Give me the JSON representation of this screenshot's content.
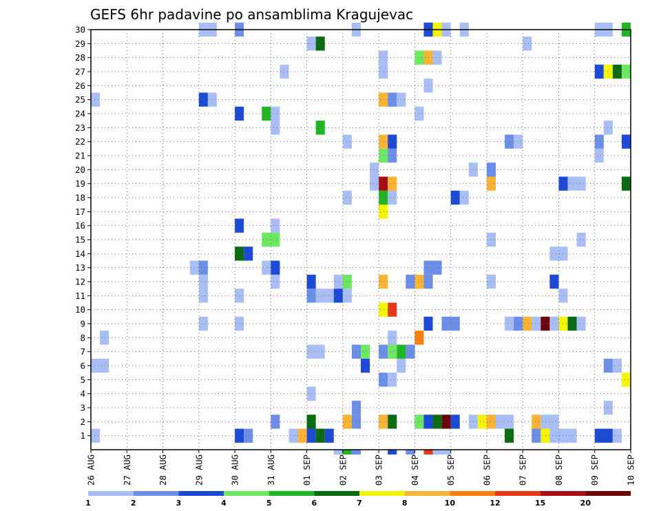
{
  "chart_data": {
    "type": "heatmap",
    "title": "GEFS 6hr padavine po ansamblima Kragujevac",
    "x_tick_labels": [
      "26 AUG",
      "27 AUG",
      "28 AUG",
      "29 AUG",
      "30 AUG",
      "31 AUG",
      "01 SEP",
      "02 SEP",
      "03 SEP",
      "04 SEP",
      "05 SEP",
      "06 SEP",
      "07 SEP",
      "08 SEP",
      "09 SEP",
      "10 SEP"
    ],
    "y_tick_labels": [
      "1",
      "2",
      "3",
      "4",
      "5",
      "6",
      "7",
      "8",
      "9",
      "10",
      "11",
      "12",
      "13",
      "14",
      "15",
      "16",
      "17",
      "18",
      "19",
      "20",
      "21",
      "22",
      "23",
      "24",
      "25",
      "26",
      "27",
      "28",
      "29",
      "30"
    ],
    "x_range_days": [
      0,
      15
    ],
    "y_range": [
      0,
      30
    ],
    "grid": true,
    "legend": {
      "placement": "bottom",
      "bins": [
        {
          "color": "#a8bef5"
        },
        {
          "color": "#6b8ee8"
        },
        {
          "color": "#1c4ad6"
        },
        {
          "color": "#6ee862"
        },
        {
          "color": "#1fb524"
        },
        {
          "color": "#0b6b12"
        },
        {
          "color": "#f5f500"
        },
        {
          "color": "#fab435"
        },
        {
          "color": "#f7800d"
        },
        {
          "color": "#e63a16"
        },
        {
          "color": "#a80f10"
        },
        {
          "color": "#6b0508"
        }
      ],
      "labels": [
        "1",
        "2",
        "3",
        "4",
        "5",
        "6",
        "7",
        "8",
        "10",
        "12",
        "15",
        "20"
      ]
    },
    "cells": [
      {
        "t": [
          0.0,
          0.25
        ],
        "m": 1,
        "c": 1
      },
      {
        "t": [
          4.0,
          4.25
        ],
        "m": 1,
        "c": 3
      },
      {
        "t": [
          4.25,
          4.5
        ],
        "m": 1,
        "c": 2
      },
      {
        "t": [
          5.5,
          5.75
        ],
        "m": 1,
        "c": 1
      },
      {
        "t": [
          5.75,
          6.0
        ],
        "m": 1,
        "c": 8
      },
      {
        "t": [
          6.0,
          6.25
        ],
        "m": 1,
        "c": 3
      },
      {
        "t": [
          6.25,
          6.5
        ],
        "m": 1,
        "c": 6
      },
      {
        "t": [
          6.5,
          6.75
        ],
        "m": 1,
        "c": 3
      },
      {
        "t": [
          11.5,
          11.75
        ],
        "m": 1,
        "c": 6
      },
      {
        "t": [
          12.25,
          12.5
        ],
        "m": 1,
        "c": 2
      },
      {
        "t": [
          12.5,
          12.75
        ],
        "m": 1,
        "c": 7
      },
      {
        "t": [
          12.75,
          13.5
        ],
        "m": 1,
        "c": 1
      },
      {
        "t": [
          14.0,
          14.5
        ],
        "m": 1,
        "c": 3
      },
      {
        "t": [
          14.5,
          14.75
        ],
        "m": 1,
        "c": 1
      },
      {
        "t": [
          5.0,
          5.25
        ],
        "m": 2,
        "c": 2
      },
      {
        "t": [
          6.0,
          6.25
        ],
        "m": 2,
        "c": 6
      },
      {
        "t": [
          7.0,
          7.25
        ],
        "m": 2,
        "c": 8
      },
      {
        "t": [
          7.25,
          7.5
        ],
        "m": 2,
        "c": 2
      },
      {
        "t": [
          8.0,
          8.25
        ],
        "m": 2,
        "c": 8
      },
      {
        "t": [
          8.25,
          8.5
        ],
        "m": 2,
        "c": 6
      },
      {
        "t": [
          9.0,
          9.25
        ],
        "m": 2,
        "c": 4
      },
      {
        "t": [
          9.25,
          9.5
        ],
        "m": 2,
        "c": 3
      },
      {
        "t": [
          9.5,
          9.75
        ],
        "m": 2,
        "c": 6
      },
      {
        "t": [
          9.75,
          10.0
        ],
        "m": 2,
        "c": 12
      },
      {
        "t": [
          10.0,
          10.25
        ],
        "m": 2,
        "c": 3
      },
      {
        "t": [
          10.5,
          10.75
        ],
        "m": 2,
        "c": 1
      },
      {
        "t": [
          10.75,
          11.0
        ],
        "m": 2,
        "c": 7
      },
      {
        "t": [
          11.0,
          11.25
        ],
        "m": 2,
        "c": 8
      },
      {
        "t": [
          11.25,
          11.75
        ],
        "m": 2,
        "c": 1
      },
      {
        "t": [
          12.25,
          12.5
        ],
        "m": 2,
        "c": 8
      },
      {
        "t": [
          12.5,
          13.0
        ],
        "m": 2,
        "c": 1
      },
      {
        "t": [
          7.25,
          7.5
        ],
        "m": 3,
        "c": 2
      },
      {
        "t": [
          14.25,
          14.5
        ],
        "m": 3,
        "c": 1
      },
      {
        "t": [
          6.0,
          6.25
        ],
        "m": 4,
        "c": 1
      },
      {
        "t": [
          8.0,
          8.25
        ],
        "m": 5,
        "c": 2
      },
      {
        "t": [
          8.25,
          8.5
        ],
        "m": 5,
        "c": 1
      },
      {
        "t": [
          14.75,
          15.0
        ],
        "m": 5,
        "c": 7
      },
      {
        "t": [
          0.0,
          0.5
        ],
        "m": 6,
        "c": 1
      },
      {
        "t": [
          7.5,
          7.75
        ],
        "m": 6,
        "c": 3
      },
      {
        "t": [
          8.5,
          8.75
        ],
        "m": 6,
        "c": 1
      },
      {
        "t": [
          14.25,
          14.5
        ],
        "m": 6,
        "c": 2
      },
      {
        "t": [
          14.5,
          14.75
        ],
        "m": 6,
        "c": 1
      },
      {
        "t": [
          6.0,
          6.5
        ],
        "m": 7,
        "c": 1
      },
      {
        "t": [
          7.25,
          7.5
        ],
        "m": 7,
        "c": 2
      },
      {
        "t": [
          7.5,
          7.75
        ],
        "m": 7,
        "c": 4
      },
      {
        "t": [
          8.0,
          8.25
        ],
        "m": 7,
        "c": 2
      },
      {
        "t": [
          8.25,
          8.5
        ],
        "m": 7,
        "c": 4
      },
      {
        "t": [
          8.5,
          8.75
        ],
        "m": 7,
        "c": 5
      },
      {
        "t": [
          8.75,
          9.0
        ],
        "m": 7,
        "c": 2
      },
      {
        "t": [
          0.25,
          0.5
        ],
        "m": 8,
        "c": 1
      },
      {
        "t": [
          8.25,
          8.5
        ],
        "m": 8,
        "c": 1
      },
      {
        "t": [
          9.0,
          9.25
        ],
        "m": 8,
        "c": 9
      },
      {
        "t": [
          3.0,
          3.25
        ],
        "m": 9,
        "c": 1
      },
      {
        "t": [
          4.0,
          4.25
        ],
        "m": 9,
        "c": 1
      },
      {
        "t": [
          9.25,
          9.5
        ],
        "m": 9,
        "c": 3
      },
      {
        "t": [
          9.75,
          10.25
        ],
        "m": 9,
        "c": 2
      },
      {
        "t": [
          11.5,
          11.75
        ],
        "m": 9,
        "c": 1
      },
      {
        "t": [
          11.75,
          12.0
        ],
        "m": 9,
        "c": 2
      },
      {
        "t": [
          12.0,
          12.25
        ],
        "m": 9,
        "c": 8
      },
      {
        "t": [
          12.25,
          12.5
        ],
        "m": 9,
        "c": 1
      },
      {
        "t": [
          12.5,
          12.75
        ],
        "m": 9,
        "c": 12
      },
      {
        "t": [
          12.75,
          13.0
        ],
        "m": 9,
        "c": 1
      },
      {
        "t": [
          13.0,
          13.25
        ],
        "m": 9,
        "c": 7
      },
      {
        "t": [
          13.25,
          13.5
        ],
        "m": 9,
        "c": 6
      },
      {
        "t": [
          13.5,
          13.75
        ],
        "m": 9,
        "c": 1
      },
      {
        "t": [
          8.0,
          8.25
        ],
        "m": 10,
        "c": 7
      },
      {
        "t": [
          8.25,
          8.5
        ],
        "m": 10,
        "c": 10
      },
      {
        "t": [
          3.0,
          3.25
        ],
        "m": 11,
        "c": 1
      },
      {
        "t": [
          4.0,
          4.25
        ],
        "m": 11,
        "c": 1
      },
      {
        "t": [
          6.0,
          6.25
        ],
        "m": 11,
        "c": 2
      },
      {
        "t": [
          6.25,
          6.75
        ],
        "m": 11,
        "c": 1
      },
      {
        "t": [
          6.75,
          7.0
        ],
        "m": 11,
        "c": 3
      },
      {
        "t": [
          7.0,
          7.25
        ],
        "m": 11,
        "c": 1
      },
      {
        "t": [
          13.0,
          13.25
        ],
        "m": 11,
        "c": 1
      },
      {
        "t": [
          3.0,
          3.25
        ],
        "m": 12,
        "c": 1
      },
      {
        "t": [
          5.0,
          5.25
        ],
        "m": 12,
        "c": 1
      },
      {
        "t": [
          6.0,
          6.25
        ],
        "m": 12,
        "c": 3
      },
      {
        "t": [
          6.75,
          7.0
        ],
        "m": 12,
        "c": 1
      },
      {
        "t": [
          7.0,
          7.25
        ],
        "m": 12,
        "c": 4
      },
      {
        "t": [
          8.0,
          8.25
        ],
        "m": 12,
        "c": 8
      },
      {
        "t": [
          8.75,
          9.0
        ],
        "m": 12,
        "c": 2
      },
      {
        "t": [
          9.0,
          9.25
        ],
        "m": 12,
        "c": 8
      },
      {
        "t": [
          9.25,
          9.5
        ],
        "m": 12,
        "c": 2
      },
      {
        "t": [
          11.0,
          11.25
        ],
        "m": 12,
        "c": 1
      },
      {
        "t": [
          12.75,
          13.0
        ],
        "m": 12,
        "c": 3
      },
      {
        "t": [
          2.75,
          3.0
        ],
        "m": 13,
        "c": 1
      },
      {
        "t": [
          3.0,
          3.25
        ],
        "m": 13,
        "c": 2
      },
      {
        "t": [
          4.75,
          5.0
        ],
        "m": 13,
        "c": 1
      },
      {
        "t": [
          5.0,
          5.25
        ],
        "m": 13,
        "c": 3
      },
      {
        "t": [
          9.25,
          9.75
        ],
        "m": 13,
        "c": 2
      },
      {
        "t": [
          4.0,
          4.25
        ],
        "m": 14,
        "c": 6
      },
      {
        "t": [
          4.25,
          4.5
        ],
        "m": 14,
        "c": 3
      },
      {
        "t": [
          12.75,
          13.25
        ],
        "m": 14,
        "c": 1
      },
      {
        "t": [
          4.75,
          5.25
        ],
        "m": 15,
        "c": 4
      },
      {
        "t": [
          11.0,
          11.25
        ],
        "m": 15,
        "c": 1
      },
      {
        "t": [
          13.5,
          13.75
        ],
        "m": 15,
        "c": 1
      },
      {
        "t": [
          4.0,
          4.25
        ],
        "m": 16,
        "c": 3
      },
      {
        "t": [
          5.0,
          5.25
        ],
        "m": 16,
        "c": 1
      },
      {
        "t": [
          8.0,
          8.25
        ],
        "m": 17,
        "c": 7
      },
      {
        "t": [
          7.0,
          7.25
        ],
        "m": 18,
        "c": 1
      },
      {
        "t": [
          8.0,
          8.25
        ],
        "m": 18,
        "c": 5
      },
      {
        "t": [
          8.25,
          8.5
        ],
        "m": 18,
        "c": 1
      },
      {
        "t": [
          10.0,
          10.25
        ],
        "m": 18,
        "c": 3
      },
      {
        "t": [
          10.25,
          10.5
        ],
        "m": 18,
        "c": 1
      },
      {
        "t": [
          7.75,
          8.0
        ],
        "m": 19,
        "c": 1
      },
      {
        "t": [
          8.0,
          8.25
        ],
        "m": 19,
        "c": 11
      },
      {
        "t": [
          8.25,
          8.5
        ],
        "m": 19,
        "c": 8
      },
      {
        "t": [
          11.0,
          11.25
        ],
        "m": 19,
        "c": 8
      },
      {
        "t": [
          13.0,
          13.25
        ],
        "m": 19,
        "c": 3
      },
      {
        "t": [
          13.25,
          13.75
        ],
        "m": 19,
        "c": 1
      },
      {
        "t": [
          14.75,
          15.0
        ],
        "m": 19,
        "c": 6
      },
      {
        "t": [
          7.75,
          8.0
        ],
        "m": 20,
        "c": 1
      },
      {
        "t": [
          10.5,
          10.75
        ],
        "m": 20,
        "c": 1
      },
      {
        "t": [
          11.0,
          11.25
        ],
        "m": 20,
        "c": 2
      },
      {
        "t": [
          8.0,
          8.25
        ],
        "m": 21,
        "c": 4
      },
      {
        "t": [
          8.25,
          8.5
        ],
        "m": 21,
        "c": 2
      },
      {
        "t": [
          14.0,
          14.25
        ],
        "m": 21,
        "c": 1
      },
      {
        "t": [
          7.0,
          7.25
        ],
        "m": 22,
        "c": 1
      },
      {
        "t": [
          8.0,
          8.25
        ],
        "m": 22,
        "c": 8
      },
      {
        "t": [
          8.25,
          8.5
        ],
        "m": 22,
        "c": 3
      },
      {
        "t": [
          11.5,
          11.75
        ],
        "m": 22,
        "c": 2
      },
      {
        "t": [
          11.75,
          12.0
        ],
        "m": 22,
        "c": 1
      },
      {
        "t": [
          14.0,
          14.25
        ],
        "m": 22,
        "c": 2
      },
      {
        "t": [
          14.75,
          15.0
        ],
        "m": 22,
        "c": 3
      },
      {
        "t": [
          5.0,
          5.25
        ],
        "m": 23,
        "c": 1
      },
      {
        "t": [
          6.25,
          6.5
        ],
        "m": 23,
        "c": 5
      },
      {
        "t": [
          14.25,
          14.5
        ],
        "m": 23,
        "c": 1
      },
      {
        "t": [
          4.0,
          4.25
        ],
        "m": 24,
        "c": 3
      },
      {
        "t": [
          4.75,
          5.0
        ],
        "m": 24,
        "c": 5
      },
      {
        "t": [
          5.0,
          5.25
        ],
        "m": 24,
        "c": 1
      },
      {
        "t": [
          9.0,
          9.25
        ],
        "m": 24,
        "c": 1
      },
      {
        "t": [
          0.0,
          0.25
        ],
        "m": 25,
        "c": 1
      },
      {
        "t": [
          3.0,
          3.25
        ],
        "m": 25,
        "c": 3
      },
      {
        "t": [
          3.25,
          3.5
        ],
        "m": 25,
        "c": 1
      },
      {
        "t": [
          8.0,
          8.25
        ],
        "m": 25,
        "c": 8
      },
      {
        "t": [
          8.25,
          8.5
        ],
        "m": 25,
        "c": 2
      },
      {
        "t": [
          8.5,
          8.75
        ],
        "m": 25,
        "c": 1
      },
      {
        "t": [
          9.25,
          9.5
        ],
        "m": 26,
        "c": 1
      },
      {
        "t": [
          5.25,
          5.5
        ],
        "m": 27,
        "c": 1
      },
      {
        "t": [
          8.0,
          8.25
        ],
        "m": 27,
        "c": 1
      },
      {
        "t": [
          14.0,
          14.25
        ],
        "m": 27,
        "c": 3
      },
      {
        "t": [
          14.25,
          14.5
        ],
        "m": 27,
        "c": 7
      },
      {
        "t": [
          14.5,
          14.75
        ],
        "m": 27,
        "c": 6
      },
      {
        "t": [
          14.75,
          15.0
        ],
        "m": 27,
        "c": 4
      },
      {
        "t": [
          8.0,
          8.25
        ],
        "m": 28,
        "c": 1
      },
      {
        "t": [
          9.0,
          9.25
        ],
        "m": 28,
        "c": 4
      },
      {
        "t": [
          9.25,
          9.5
        ],
        "m": 28,
        "c": 8
      },
      {
        "t": [
          9.5,
          9.75
        ],
        "m": 28,
        "c": 1
      },
      {
        "t": [
          6.0,
          6.25
        ],
        "m": 29,
        "c": 1
      },
      {
        "t": [
          6.25,
          6.5
        ],
        "m": 29,
        "c": 6
      },
      {
        "t": [
          12.0,
          12.25
        ],
        "m": 29,
        "c": 1
      },
      {
        "t": [
          3.0,
          3.5
        ],
        "m": 30,
        "c": 1
      },
      {
        "t": [
          4.0,
          4.25
        ],
        "m": 30,
        "c": 2
      },
      {
        "t": [
          7.25,
          7.5
        ],
        "m": 30,
        "c": 1
      },
      {
        "t": [
          9.25,
          9.5
        ],
        "m": 30,
        "c": 3
      },
      {
        "t": [
          9.5,
          9.75
        ],
        "m": 30,
        "c": 7
      },
      {
        "t": [
          9.75,
          10.0
        ],
        "m": 30,
        "c": 1
      },
      {
        "t": [
          10.25,
          10.5
        ],
        "m": 30,
        "c": 1
      },
      {
        "t": [
          14.0,
          14.5
        ],
        "m": 30,
        "c": 1
      },
      {
        "t": [
          14.75,
          15.0
        ],
        "m": 30,
        "c": 5
      },
      {
        "t": [
          6.75,
          7.0
        ],
        "m": 0,
        "c": 1
      },
      {
        "t": [
          7.0,
          7.25
        ],
        "m": 0,
        "c": 5
      },
      {
        "t": [
          7.25,
          7.5
        ],
        "m": 0,
        "c": 2
      },
      {
        "t": [
          8.25,
          8.5
        ],
        "m": 0,
        "c": 3
      },
      {
        "t": [
          8.75,
          9.0
        ],
        "m": 0,
        "c": 2
      },
      {
        "t": [
          9.25,
          9.5
        ],
        "m": 0,
        "c": 10
      },
      {
        "t": [
          9.5,
          10.0
        ],
        "m": 0,
        "c": 1
      }
    ]
  }
}
